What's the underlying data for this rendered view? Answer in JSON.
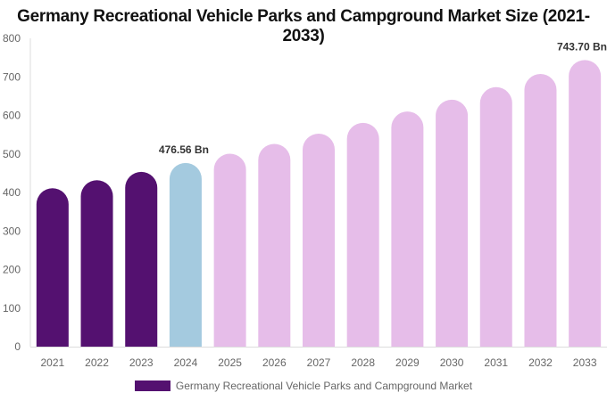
{
  "chart_data": {
    "type": "bar",
    "title": "Germany Recreational Vehicle Parks and Campground Market Size (2021-2033)",
    "categories": [
      "2021",
      "2022",
      "2023",
      "2024",
      "2025",
      "2026",
      "2027",
      "2028",
      "2029",
      "2030",
      "2031",
      "2032",
      "2033"
    ],
    "series": [
      {
        "name": "Germany Recreational Vehicle Parks and Campground Market",
        "values": [
          411.0,
          431.8,
          453.6,
          476.56,
          500.7,
          526.0,
          552.6,
          580.6,
          610.0,
          640.9,
          673.3,
          707.4,
          743.7
        ]
      }
    ],
    "data_labels": {
      "2024": "476.56 Bn",
      "2033": "743.70 Bn"
    },
    "ylim": [
      0,
      800
    ],
    "yticks": [
      0,
      100,
      200,
      300,
      400,
      500,
      600,
      700,
      800
    ],
    "grid": false,
    "legend_position": "bottom",
    "colors": {
      "historical": "#541170",
      "base_year": "#a4cadf",
      "forecast": "#e6bde9"
    },
    "color_groups": [
      "historical",
      "historical",
      "historical",
      "base_year",
      "forecast",
      "forecast",
      "forecast",
      "forecast",
      "forecast",
      "forecast",
      "forecast",
      "forecast",
      "forecast"
    ]
  }
}
